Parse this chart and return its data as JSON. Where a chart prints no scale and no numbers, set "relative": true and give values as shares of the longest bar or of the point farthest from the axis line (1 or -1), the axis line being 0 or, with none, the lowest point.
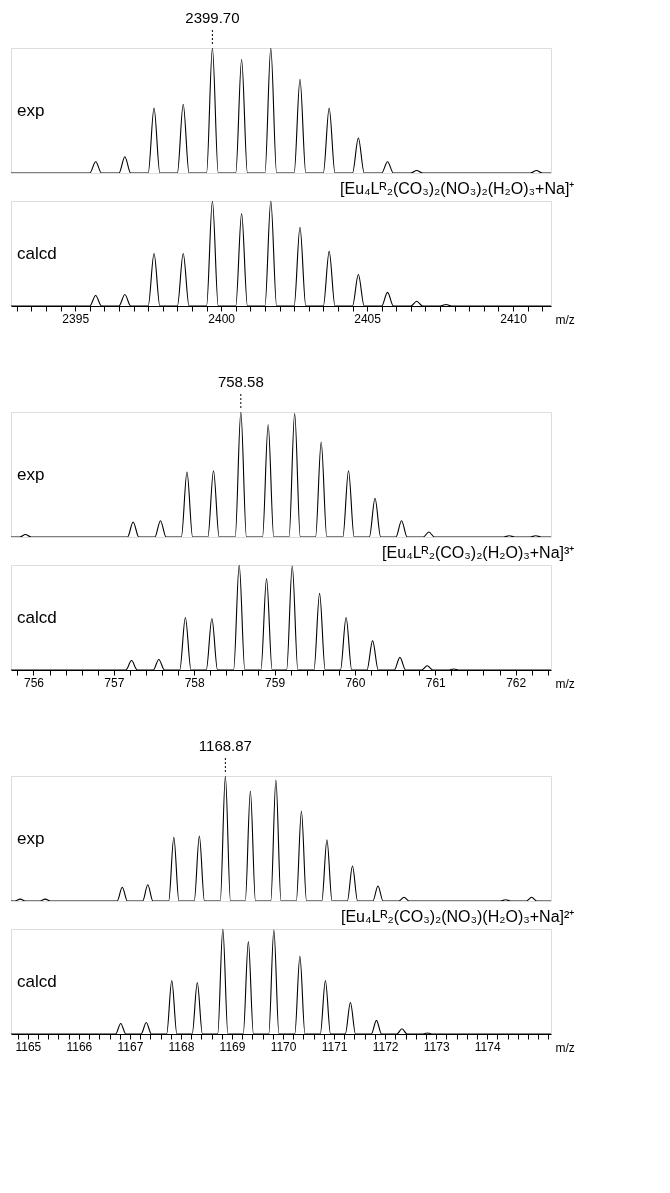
{
  "chart_data": [
    {
      "type": "line",
      "relative": true,
      "line_style": "solid",
      "tick_labels": false,
      "xlim": [
        2392.8,
        2411.3
      ],
      "annotations": [
        {
          "text": "2399.70",
          "x": 2399.7,
          "y": 1.0
        }
      ],
      "series": [
        {
          "name": "exp",
          "color": "#000000",
          "x": [
            2392.8,
            2395.5,
            2395.7,
            2395.9,
            2396.5,
            2396.7,
            2396.9,
            2397.5,
            2397.7,
            2397.9,
            2398.5,
            2398.7,
            2398.9,
            2399.5,
            2399.7,
            2399.9,
            2400.5,
            2400.7,
            2400.9,
            2401.5,
            2401.7,
            2401.9,
            2402.5,
            2402.7,
            2402.9,
            2403.5,
            2403.7,
            2403.9,
            2404.5,
            2404.7,
            2404.9,
            2405.5,
            2405.7,
            2405.9,
            2406.5,
            2406.7,
            2406.9,
            2410.6,
            2410.8,
            2411.0,
            2411.3
          ],
          "values": [
            0,
            0,
            0.09,
            0,
            0,
            0.13,
            0,
            0,
            0.52,
            0,
            0,
            0.55,
            0,
            0,
            1.0,
            0,
            0,
            0.91,
            0,
            0,
            1.0,
            0,
            0,
            0.75,
            0,
            0,
            0.52,
            0,
            0,
            0.28,
            0,
            0,
            0.09,
            0,
            0,
            0.02,
            0,
            0,
            0.02,
            0,
            0
          ]
        }
      ]
    },
    {
      "type": "line",
      "relative": true,
      "line_style": "solid",
      "title": "[Eu₄Lᴿ₂(CO₃)₂(NO₃)₂(H₂O)₃+Na]⁺",
      "xlabel": "m/z",
      "xlim": [
        2392.8,
        2411.3
      ],
      "xticks": [
        {
          "value": 2393,
          "label": null
        },
        {
          "value": 2393.5,
          "label": null
        },
        {
          "value": 2394,
          "label": null
        },
        {
          "value": 2394.5,
          "label": null
        },
        2395,
        {
          "value": 2395.5,
          "label": null
        },
        {
          "value": 2396,
          "label": null
        },
        {
          "value": 2396.5,
          "label": null
        },
        {
          "value": 2397,
          "label": null
        },
        {
          "value": 2397.5,
          "label": null
        },
        {
          "value": 2398,
          "label": null
        },
        {
          "value": 2398.5,
          "label": null
        },
        {
          "value": 2399,
          "label": null
        },
        {
          "value": 2399.5,
          "label": null
        },
        2400,
        {
          "value": 2400.5,
          "label": null
        },
        {
          "value": 2401,
          "label": null
        },
        {
          "value": 2401.5,
          "label": null
        },
        {
          "value": 2402,
          "label": null
        },
        {
          "value": 2402.5,
          "label": null
        },
        {
          "value": 2403,
          "label": null
        },
        {
          "value": 2403.5,
          "label": null
        },
        {
          "value": 2404,
          "label": null
        },
        {
          "value": 2404.5,
          "label": null
        },
        2405,
        {
          "value": 2405.5,
          "label": null
        },
        {
          "value": 2406,
          "label": null
        },
        {
          "value": 2406.5,
          "label": null
        },
        {
          "value": 2407,
          "label": null
        },
        {
          "value": 2407.5,
          "label": null
        },
        {
          "value": 2408,
          "label": null
        },
        {
          "value": 2408.5,
          "label": null
        },
        {
          "value": 2409,
          "label": null
        },
        {
          "value": 2409.5,
          "label": null
        },
        2410,
        {
          "value": 2410.5,
          "label": null
        },
        {
          "value": 2411,
          "label": null
        }
      ],
      "series": [
        {
          "name": "calcd",
          "color": "#000000",
          "x": [
            2392.8,
            2395.5,
            2395.7,
            2395.9,
            2396.5,
            2396.7,
            2396.9,
            2397.5,
            2397.7,
            2397.9,
            2398.5,
            2398.7,
            2398.9,
            2399.5,
            2399.7,
            2399.9,
            2400.5,
            2400.7,
            2400.9,
            2401.5,
            2401.7,
            2401.9,
            2402.5,
            2402.7,
            2402.9,
            2403.5,
            2403.7,
            2403.9,
            2404.5,
            2404.7,
            2404.9,
            2405.5,
            2405.7,
            2405.9,
            2406.5,
            2406.7,
            2406.9,
            2407.5,
            2407.7,
            2407.9,
            2411.3
          ],
          "values": [
            0,
            0,
            0.1,
            0,
            0,
            0.11,
            0,
            0,
            0.5,
            0,
            0,
            0.5,
            0,
            0,
            1.0,
            0,
            0,
            0.88,
            0,
            0,
            1.0,
            0,
            0,
            0.75,
            0,
            0,
            0.52,
            0,
            0,
            0.3,
            0,
            0,
            0.13,
            0,
            0,
            0.045,
            0,
            0,
            0.015,
            0,
            0
          ]
        }
      ]
    },
    {
      "type": "line",
      "relative": true,
      "line_style": "solid",
      "tick_labels": false,
      "xlim": [
        755.72,
        762.44
      ],
      "annotations": [
        {
          "text": "758.58",
          "x": 758.58,
          "y": 1.0
        }
      ],
      "series": [
        {
          "name": "exp",
          "color": "#000000",
          "x": [
            755.72,
            755.83,
            755.9,
            755.97,
            757.17,
            757.24,
            757.31,
            757.51,
            757.58,
            757.65,
            757.84,
            757.91,
            757.98,
            758.17,
            758.24,
            758.31,
            758.51,
            758.58,
            758.65,
            758.85,
            758.92,
            758.99,
            759.18,
            759.25,
            759.32,
            759.51,
            759.58,
            759.65,
            759.85,
            759.92,
            759.99,
            760.18,
            760.25,
            760.32,
            760.51,
            760.58,
            760.65,
            760.85,
            760.92,
            760.99,
            761.85,
            761.92,
            761.99,
            762.18,
            762.25,
            762.32,
            762.44
          ],
          "values": [
            0,
            0,
            0.02,
            0,
            0,
            0.12,
            0,
            0,
            0.13,
            0,
            0,
            0.52,
            0,
            0,
            0.53,
            0,
            0,
            1.0,
            0,
            0,
            0.9,
            0,
            0,
            0.99,
            0,
            0,
            0.76,
            0,
            0,
            0.53,
            0,
            0,
            0.31,
            0,
            0,
            0.13,
            0,
            0,
            0.04,
            0,
            0,
            0.01,
            0,
            0,
            0.01,
            0,
            0
          ]
        }
      ]
    },
    {
      "type": "line",
      "relative": true,
      "line_style": "solid",
      "title": "[Eu₄Lᴿ₂(CO₃)₂(H₂O)₃+Na]³⁺",
      "xlabel": "m/z",
      "xlim": [
        755.72,
        762.44
      ],
      "xticks": [
        {
          "value": 755.8,
          "label": null
        },
        756,
        {
          "value": 756.2,
          "label": null
        },
        {
          "value": 756.4,
          "label": null
        },
        {
          "value": 756.6,
          "label": null
        },
        {
          "value": 756.8,
          "label": null
        },
        757,
        {
          "value": 757.2,
          "label": null
        },
        {
          "value": 757.4,
          "label": null
        },
        {
          "value": 757.6,
          "label": null
        },
        {
          "value": 757.8,
          "label": null
        },
        758,
        {
          "value": 758.2,
          "label": null
        },
        {
          "value": 758.4,
          "label": null
        },
        {
          "value": 758.6,
          "label": null
        },
        {
          "value": 758.8,
          "label": null
        },
        759,
        {
          "value": 759.2,
          "label": null
        },
        {
          "value": 759.4,
          "label": null
        },
        {
          "value": 759.6,
          "label": null
        },
        {
          "value": 759.8,
          "label": null
        },
        760,
        {
          "value": 760.2,
          "label": null
        },
        {
          "value": 760.4,
          "label": null
        },
        {
          "value": 760.6,
          "label": null
        },
        {
          "value": 760.8,
          "label": null
        },
        761,
        {
          "value": 761.2,
          "label": null
        },
        {
          "value": 761.4,
          "label": null
        },
        {
          "value": 761.6,
          "label": null
        },
        {
          "value": 761.8,
          "label": null
        },
        762,
        {
          "value": 762.2,
          "label": null
        },
        {
          "value": 762.4,
          "label": null
        }
      ],
      "series": [
        {
          "name": "calcd",
          "color": "#000000",
          "x": [
            755.72,
            757.15,
            757.22,
            757.29,
            757.49,
            757.56,
            757.63,
            757.82,
            757.89,
            757.96,
            758.15,
            758.22,
            758.29,
            758.49,
            758.56,
            758.63,
            758.83,
            758.9,
            758.97,
            759.15,
            759.22,
            759.29,
            759.49,
            759.56,
            759.63,
            759.82,
            759.89,
            759.96,
            760.15,
            760.22,
            760.29,
            760.49,
            760.56,
            760.63,
            760.83,
            760.9,
            760.97,
            761.16,
            761.23,
            761.3,
            762.44
          ],
          "values": [
            0,
            0,
            0.09,
            0,
            0,
            0.1,
            0,
            0,
            0.5,
            0,
            0,
            0.49,
            0,
            0,
            1.0,
            0,
            0,
            0.87,
            0,
            0,
            0.99,
            0,
            0,
            0.73,
            0,
            0,
            0.5,
            0,
            0,
            0.28,
            0,
            0,
            0.12,
            0,
            0,
            0.04,
            0,
            0,
            0.01,
            0,
            0
          ]
        }
      ]
    },
    {
      "type": "line",
      "relative": true,
      "line_style": "solid",
      "tick_labels": false,
      "xlim": [
        1164.67,
        1175.25
      ],
      "annotations": [
        {
          "text": "1168.87",
          "x": 1168.87,
          "y": 1.0
        }
      ],
      "series": [
        {
          "name": "exp",
          "color": "#000000",
          "x": [
            1164.67,
            1164.75,
            1164.85,
            1164.95,
            1165.24,
            1165.34,
            1165.44,
            1166.75,
            1166.85,
            1166.95,
            1167.25,
            1167.35,
            1167.45,
            1167.76,
            1167.86,
            1167.96,
            1168.26,
            1168.36,
            1168.46,
            1168.77,
            1168.87,
            1168.97,
            1169.26,
            1169.36,
            1169.46,
            1169.76,
            1169.86,
            1169.96,
            1170.26,
            1170.36,
            1170.46,
            1170.76,
            1170.86,
            1170.96,
            1171.26,
            1171.36,
            1171.46,
            1171.76,
            1171.86,
            1171.96,
            1172.27,
            1172.37,
            1172.47,
            1174.26,
            1174.36,
            1174.46,
            1174.77,
            1174.87,
            1174.97,
            1175.25
          ],
          "values": [
            0,
            0,
            0.015,
            0,
            0,
            0.015,
            0,
            0,
            0.11,
            0,
            0,
            0.13,
            0,
            0,
            0.51,
            0,
            0,
            0.52,
            0,
            0,
            1.0,
            0,
            0,
            0.88,
            0,
            0,
            0.97,
            0,
            0,
            0.72,
            0,
            0,
            0.49,
            0,
            0,
            0.28,
            0,
            0,
            0.12,
            0,
            0,
            0.03,
            0,
            0,
            0.01,
            0,
            0,
            0.03,
            0,
            0
          ]
        }
      ]
    },
    {
      "type": "line",
      "relative": true,
      "line_style": "solid",
      "title": "[Eu₄Lᴿ₂(CO₃)₂(NO₃)(H₂O)₃+Na]²⁺",
      "xlabel": "m/z",
      "xlim": [
        1164.67,
        1175.25
      ],
      "xticks": [
        {
          "value": 1164.8,
          "label": null
        },
        1165,
        {
          "value": 1165.2,
          "label": null
        },
        {
          "value": 1165.4,
          "label": null
        },
        {
          "value": 1165.6,
          "label": null
        },
        {
          "value": 1165.8,
          "label": null
        },
        1166,
        {
          "value": 1166.2,
          "label": null
        },
        {
          "value": 1166.4,
          "label": null
        },
        {
          "value": 1166.6,
          "label": null
        },
        {
          "value": 1166.8,
          "label": null
        },
        1167,
        {
          "value": 1167.2,
          "label": null
        },
        {
          "value": 1167.4,
          "label": null
        },
        {
          "value": 1167.6,
          "label": null
        },
        {
          "value": 1167.8,
          "label": null
        },
        1168,
        {
          "value": 1168.2,
          "label": null
        },
        {
          "value": 1168.4,
          "label": null
        },
        {
          "value": 1168.6,
          "label": null
        },
        {
          "value": 1168.8,
          "label": null
        },
        1169,
        {
          "value": 1169.2,
          "label": null
        },
        {
          "value": 1169.4,
          "label": null
        },
        {
          "value": 1169.6,
          "label": null
        },
        {
          "value": 1169.8,
          "label": null
        },
        1170,
        {
          "value": 1170.2,
          "label": null
        },
        {
          "value": 1170.4,
          "label": null
        },
        {
          "value": 1170.6,
          "label": null
        },
        {
          "value": 1170.8,
          "label": null
        },
        1171,
        {
          "value": 1171.2,
          "label": null
        },
        {
          "value": 1171.4,
          "label": null
        },
        {
          "value": 1171.6,
          "label": null
        },
        {
          "value": 1171.8,
          "label": null
        },
        1172,
        {
          "value": 1172.2,
          "label": null
        },
        {
          "value": 1172.4,
          "label": null
        },
        {
          "value": 1172.6,
          "label": null
        },
        {
          "value": 1172.8,
          "label": null
        },
        1173,
        {
          "value": 1173.2,
          "label": null
        },
        {
          "value": 1173.4,
          "label": null
        },
        {
          "value": 1173.6,
          "label": null
        },
        {
          "value": 1173.8,
          "label": null
        },
        1174,
        {
          "value": 1174.2,
          "label": null
        },
        {
          "value": 1174.4,
          "label": null
        },
        {
          "value": 1174.6,
          "label": null
        },
        {
          "value": 1174.8,
          "label": null
        },
        {
          "value": 1175,
          "label": null
        },
        {
          "value": 1175.2,
          "label": null
        }
      ],
      "series": [
        {
          "name": "calcd",
          "color": "#000000",
          "x": [
            1164.67,
            1166.72,
            1166.82,
            1166.92,
            1167.22,
            1167.32,
            1167.42,
            1167.72,
            1167.82,
            1167.92,
            1168.22,
            1168.32,
            1168.42,
            1168.72,
            1168.82,
            1168.92,
            1169.22,
            1169.32,
            1169.42,
            1169.72,
            1169.82,
            1169.92,
            1170.23,
            1170.33,
            1170.43,
            1170.73,
            1170.83,
            1170.93,
            1171.22,
            1171.32,
            1171.42,
            1171.73,
            1171.83,
            1171.93,
            1172.23,
            1172.33,
            1172.43,
            1172.73,
            1172.83,
            1172.93,
            1175.25
          ],
          "values": [
            0,
            0,
            0.1,
            0,
            0,
            0.11,
            0,
            0,
            0.51,
            0,
            0,
            0.49,
            0,
            0,
            1.0,
            0,
            0,
            0.88,
            0,
            0,
            0.99,
            0,
            0,
            0.74,
            0,
            0,
            0.51,
            0,
            0,
            0.3,
            0,
            0,
            0.13,
            0,
            0,
            0.05,
            0,
            0,
            0.01,
            0,
            0
          ]
        }
      ]
    }
  ]
}
